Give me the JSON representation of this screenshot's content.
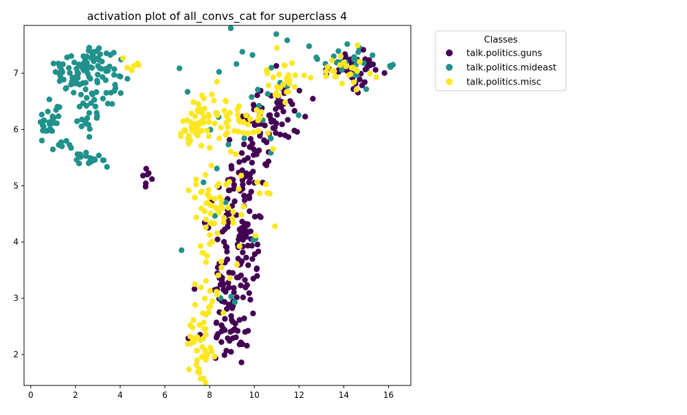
{
  "chart_data": {
    "type": "scatter",
    "title": "activation plot of all_convs_cat for superclass 4",
    "xlabel": "",
    "ylabel": "",
    "xlim": [
      -0.3,
      17.0
    ],
    "ylim": [
      1.45,
      7.85
    ],
    "xticks": [
      0,
      2,
      4,
      6,
      8,
      10,
      12,
      14,
      16
    ],
    "yticks": [
      2,
      3,
      4,
      5,
      6,
      7
    ],
    "grid": false,
    "legend": {
      "title": "Classes",
      "placement": "outside-right"
    },
    "series": [
      {
        "name": "talk.politics.guns",
        "color": "#440154",
        "clusters": [
          {
            "cx": 8.7,
            "cy": 2.5,
            "sx": 0.6,
            "sy": 0.35,
            "n": 45
          },
          {
            "cx": 9.0,
            "cy": 3.4,
            "sx": 0.65,
            "sy": 0.4,
            "n": 60
          },
          {
            "cx": 9.2,
            "cy": 4.3,
            "sx": 0.6,
            "sy": 0.4,
            "n": 50
          },
          {
            "cx": 9.4,
            "cy": 5.1,
            "sx": 0.5,
            "sy": 0.3,
            "n": 35
          },
          {
            "cx": 10.2,
            "cy": 5.9,
            "sx": 0.6,
            "sy": 0.35,
            "n": 40
          },
          {
            "cx": 11.1,
            "cy": 6.4,
            "sx": 0.55,
            "sy": 0.3,
            "n": 35
          },
          {
            "cx": 14.3,
            "cy": 7.1,
            "sx": 0.6,
            "sy": 0.15,
            "n": 45
          },
          {
            "cx": 5.2,
            "cy": 5.15,
            "sx": 0.2,
            "sy": 0.15,
            "n": 7
          }
        ]
      },
      {
        "name": "talk.politics.mideast",
        "color": "#21918c",
        "clusters": [
          {
            "cx": 0.9,
            "cy": 6.15,
            "sx": 0.3,
            "sy": 0.15,
            "n": 30
          },
          {
            "cx": 1.6,
            "cy": 6.95,
            "sx": 0.35,
            "sy": 0.18,
            "n": 25
          },
          {
            "cx": 2.5,
            "cy": 7.05,
            "sx": 0.45,
            "sy": 0.2,
            "n": 35
          },
          {
            "cx": 3.0,
            "cy": 7.3,
            "sx": 0.35,
            "sy": 0.15,
            "n": 20
          },
          {
            "cx": 2.6,
            "cy": 6.4,
            "sx": 0.45,
            "sy": 0.3,
            "n": 30
          },
          {
            "cx": 2.6,
            "cy": 5.45,
            "sx": 0.35,
            "sy": 0.06,
            "n": 18
          },
          {
            "cx": 3.8,
            "cy": 6.8,
            "sx": 0.35,
            "sy": 0.2,
            "n": 14
          },
          {
            "cx": 1.4,
            "cy": 5.7,
            "sx": 0.3,
            "sy": 0.12,
            "n": 8
          },
          {
            "cx": 14.2,
            "cy": 7.15,
            "sx": 0.55,
            "sy": 0.18,
            "n": 22
          },
          {
            "cx": 8.3,
            "cy": 5.2,
            "sx": 1.0,
            "sy": 1.5,
            "n": 22
          },
          {
            "cx": 11.0,
            "cy": 6.8,
            "sx": 0.9,
            "sy": 0.4,
            "n": 15
          },
          {
            "cx": 16.1,
            "cy": 7.15,
            "sx": 0.05,
            "sy": 0.04,
            "n": 3
          }
        ]
      },
      {
        "name": "talk.politics.misc",
        "color": "#fde725",
        "clusters": [
          {
            "cx": 7.4,
            "cy": 6.05,
            "sx": 0.35,
            "sy": 0.18,
            "n": 40
          },
          {
            "cx": 8.0,
            "cy": 6.35,
            "sx": 0.4,
            "sy": 0.2,
            "n": 20
          },
          {
            "cx": 9.5,
            "cy": 6.1,
            "sx": 0.7,
            "sy": 0.25,
            "n": 30
          },
          {
            "cx": 8.2,
            "cy": 4.7,
            "sx": 0.5,
            "sy": 0.25,
            "n": 35
          },
          {
            "cx": 8.3,
            "cy": 4.3,
            "sx": 0.6,
            "sy": 0.3,
            "n": 20
          },
          {
            "cx": 7.6,
            "cy": 2.1,
            "sx": 0.3,
            "sy": 0.3,
            "n": 40
          },
          {
            "cx": 7.8,
            "cy": 3.1,
            "sx": 0.45,
            "sy": 0.4,
            "n": 20
          },
          {
            "cx": 11.3,
            "cy": 6.9,
            "sx": 0.6,
            "sy": 0.25,
            "n": 30
          },
          {
            "cx": 14.2,
            "cy": 7.1,
            "sx": 0.6,
            "sy": 0.15,
            "n": 25
          },
          {
            "cx": 4.6,
            "cy": 7.15,
            "sx": 0.25,
            "sy": 0.08,
            "n": 6
          },
          {
            "cx": 10.3,
            "cy": 5.0,
            "sx": 0.5,
            "sy": 0.6,
            "n": 12
          }
        ]
      }
    ]
  }
}
